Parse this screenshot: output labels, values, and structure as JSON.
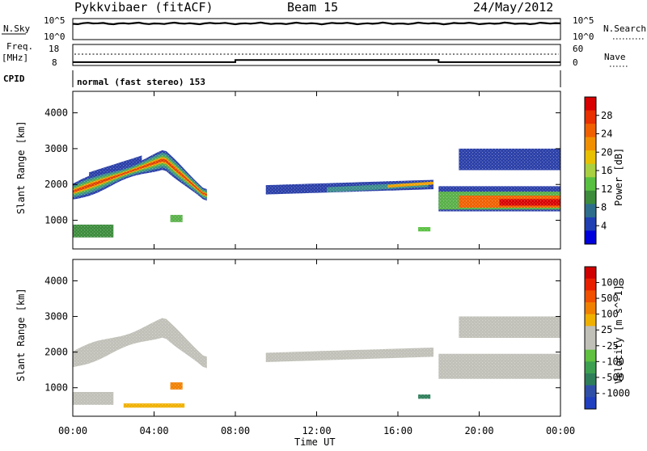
{
  "header": {
    "title": "Pykkvibaer (fitACF)",
    "beam": "Beam 15",
    "date": "24/May/2012"
  },
  "noise_panel": {
    "left_label": "N.Sky",
    "right_label": "N.Search",
    "left_ticks": [
      "10^5",
      "10^0"
    ],
    "right_ticks": [
      "10^5",
      "10^0"
    ]
  },
  "freq_panel": {
    "left_label_1": "Freq.",
    "left_label_2": "[MHz]",
    "left_ticks": [
      "18",
      "8"
    ],
    "right_label": "Nave",
    "right_ticks": [
      "60",
      "0"
    ]
  },
  "cpid_panel": {
    "label": "CPID",
    "text": "normal (fast stereo) 153"
  },
  "power_panel": {
    "ylabel": "Slant Range [km]",
    "yticks": [
      "4000",
      "3000",
      "2000",
      "1000"
    ],
    "colorbar_label": "Power [dB]",
    "colorbar_ticks": [
      "28",
      "24",
      "20",
      "16",
      "12",
      "8",
      "4"
    ],
    "colorbar_colors": [
      "#0000dd",
      "#1f3fb3",
      "#2e6e8c",
      "#3c8c3c",
      "#58c040",
      "#a8d040",
      "#e8c000",
      "#f09000",
      "#f06000",
      "#e83000",
      "#d80000"
    ]
  },
  "velocity_panel": {
    "ylabel": "Slant Range [km]",
    "yticks": [
      "4000",
      "3000",
      "2000",
      "1000"
    ],
    "colorbar_label": "Velocity [m s^-1]",
    "colorbar_ticks": [
      "1000",
      "500",
      "100",
      "25",
      "-25",
      "-100",
      "-500",
      "-1000"
    ],
    "colorbar_colors": [
      "#2040c0",
      "#3050a8",
      "#2e7e5a",
      "#3ca050",
      "#60c040",
      "#c0c0b8",
      "#c0c0b8",
      "#f0b000",
      "#f08000",
      "#f05000",
      "#e82000",
      "#d00000"
    ]
  },
  "xaxis": {
    "ticks": [
      "00:00",
      "04:00",
      "08:00",
      "12:00",
      "16:00",
      "20:00",
      "00:00"
    ],
    "label": "Time UT"
  },
  "chart_data": [
    {
      "type": "line",
      "panel": "noise",
      "x_range_hours": [
        0,
        24
      ],
      "series": [
        {
          "name": "N.Sky",
          "style": "solid",
          "note": "near top of 10^0–10^5 range throughout the day"
        },
        {
          "name": "N.Search",
          "style": "dotted"
        }
      ]
    },
    {
      "type": "line",
      "panel": "frequency",
      "x_range_hours": [
        0,
        24
      ],
      "ylim": [
        8,
        18
      ],
      "series": [
        {
          "name": "Freq.",
          "style": "solid",
          "x": [
            0.0,
            8.0,
            8.0,
            18.0,
            18.0,
            24.0
          ],
          "y": [
            8.9,
            8.9,
            10.0,
            10.0,
            8.9,
            8.9
          ]
        },
        {
          "name": "Nave",
          "style": "dotted"
        }
      ]
    },
    {
      "type": "heatmap",
      "panel": "power",
      "x_range_hours": [
        0,
        24
      ],
      "ylim_km": [
        200,
        4600
      ],
      "zlim_db": [
        0,
        31
      ],
      "ylabel": "Slant Range [km]",
      "zlabel": "Power [dB]",
      "note": "backscatter range–time map; main echo band ~1500–2500 km"
    },
    {
      "type": "heatmap",
      "panel": "velocity",
      "x_range_hours": [
        0,
        24
      ],
      "ylim_km": [
        200,
        4600
      ],
      "zlim_mps": [
        -1000,
        1000
      ],
      "ylabel": "Slant Range [km]",
      "zlabel": "Velocity [m s^-1]"
    }
  ]
}
